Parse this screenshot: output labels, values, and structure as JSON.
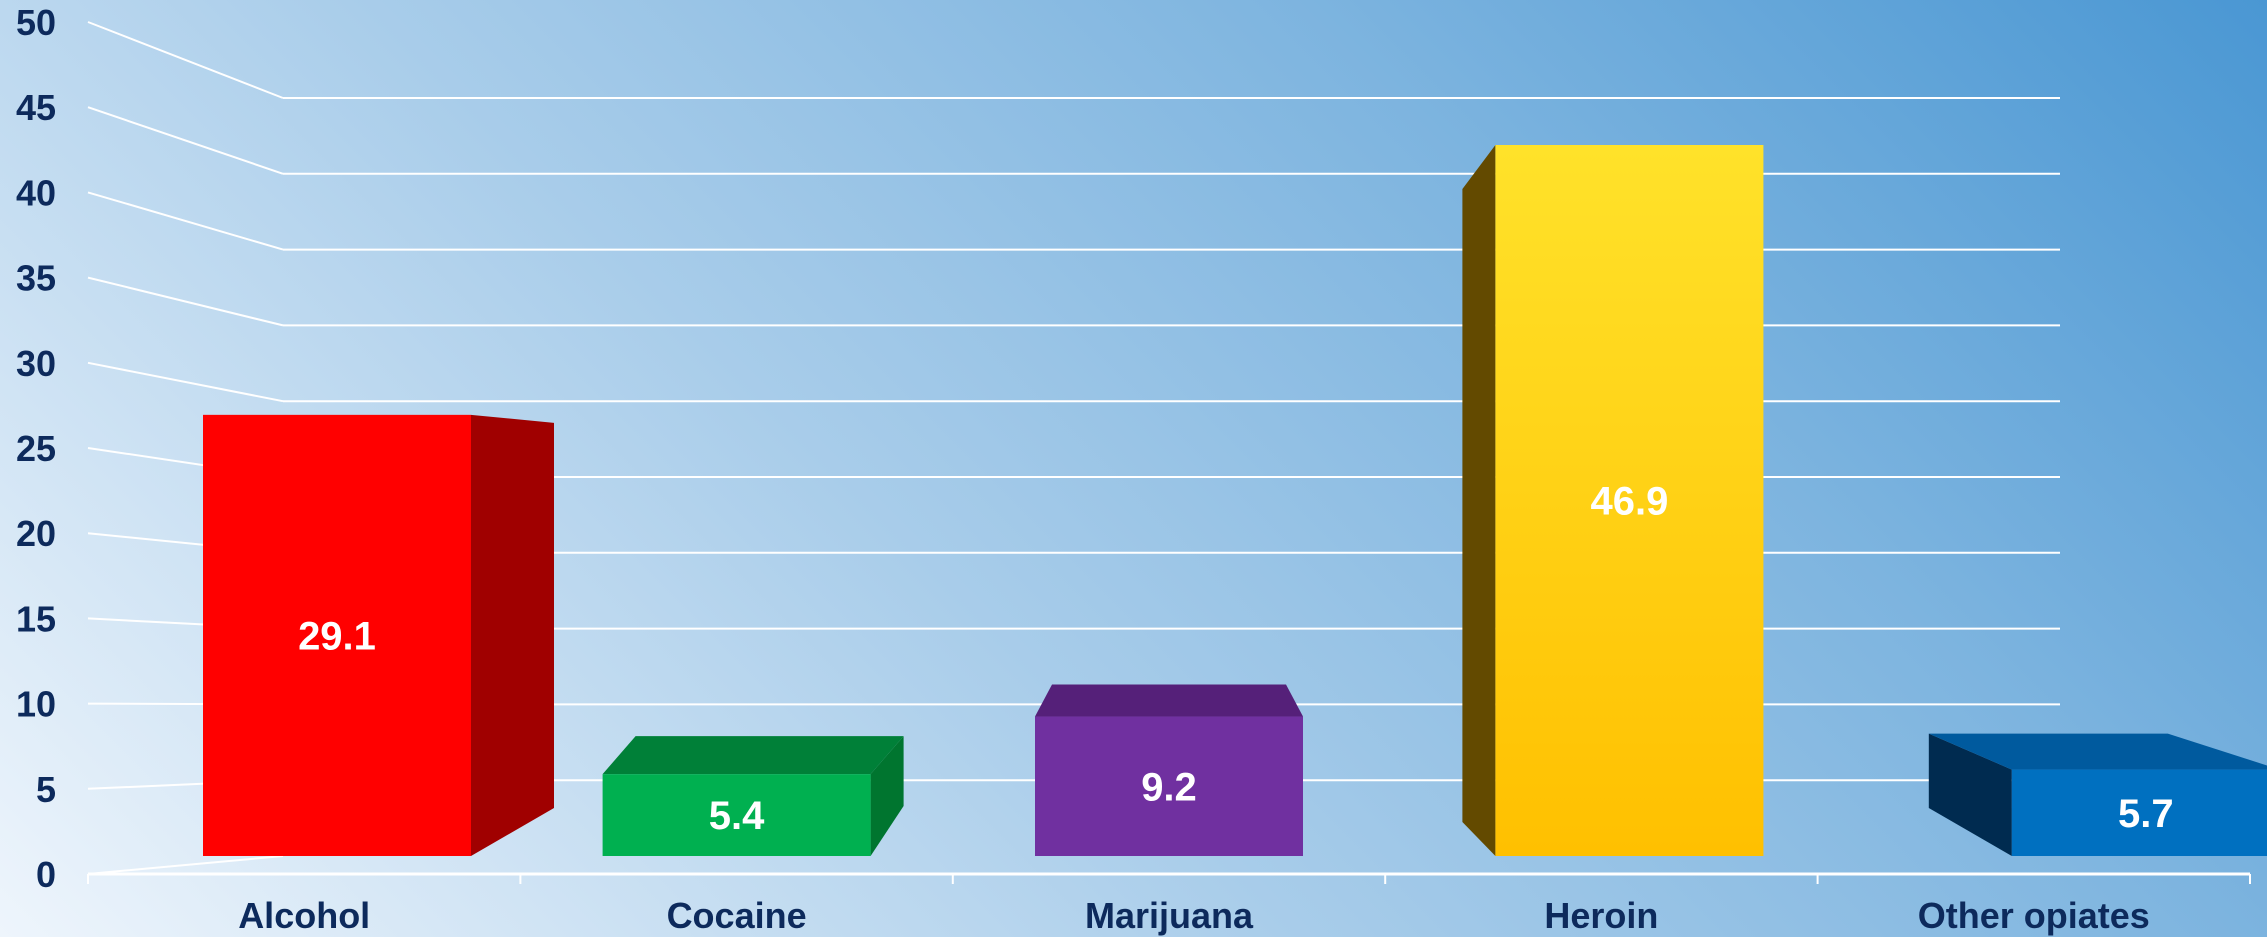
{
  "chart_data": {
    "type": "bar",
    "categories": [
      "Alcohol",
      "Cocaine",
      "Marijuana",
      "Heroin",
      "Other opiates"
    ],
    "values": [
      29.1,
      5.4,
      9.2,
      46.9,
      5.7
    ],
    "value_labels": [
      "29.1",
      "5.4",
      "9.2",
      "46.9",
      "5.7"
    ],
    "yticks": [
      "0",
      "5",
      "10",
      "15",
      "20",
      "25",
      "30",
      "35",
      "40",
      "45",
      "50"
    ],
    "ylim": [
      0,
      50
    ],
    "grid": true,
    "colors": {
      "Alcohol": "#ff0000",
      "Cocaine": "#00b050",
      "Marijuana": "#7030a0",
      "Heroin": "#ffc000",
      "Other opiates": "#0070c0"
    }
  }
}
